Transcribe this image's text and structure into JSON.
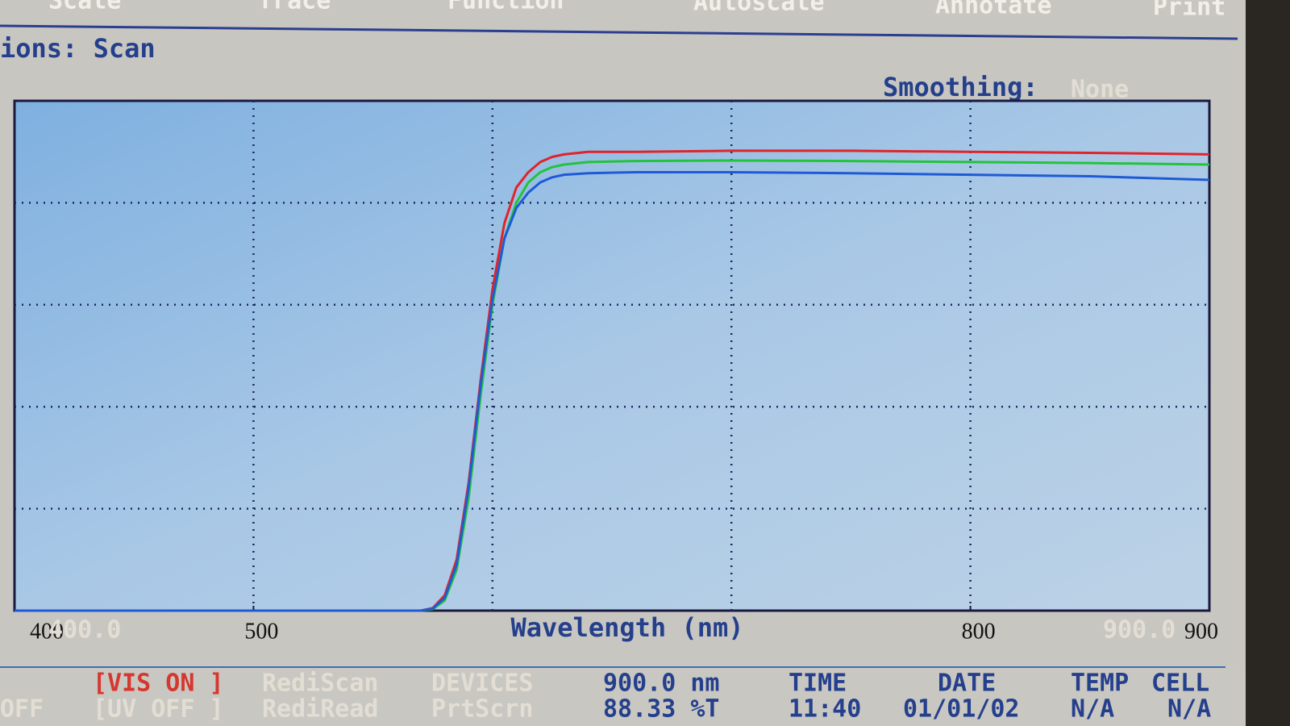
{
  "menu": [
    "Scale",
    "Trace",
    "Function",
    "Autoscale",
    "Annotate",
    "Print"
  ],
  "options": "ions: Scan",
  "smoothing": {
    "label": "Smoothing:",
    "value": "None"
  },
  "chart_data": {
    "type": "line",
    "x_label": "Wavelength (nm)",
    "x": [
      400,
      450,
      500,
      550,
      570,
      575,
      580,
      585,
      590,
      595,
      600,
      605,
      610,
      615,
      620,
      625,
      630,
      640,
      660,
      700,
      750,
      800,
      850,
      900
    ],
    "series": [
      {
        "color": "#e0242a",
        "values": [
          0,
          0,
          0,
          0,
          0,
          0.5,
          3,
          10,
          25,
          45,
          63,
          76,
          83,
          86,
          88,
          89,
          89.5,
          90,
          90,
          90.2,
          90.2,
          90,
          89.8,
          89.5
        ]
      },
      {
        "color": "#22c43a",
        "values": [
          0,
          0,
          0,
          0,
          0,
          0.3,
          2,
          8,
          22,
          42,
          60,
          73,
          80,
          84,
          86,
          87,
          87.5,
          88,
          88.2,
          88.3,
          88.2,
          88,
          87.8,
          87.5
        ]
      },
      {
        "color": "#1f5ad6",
        "values": [
          0,
          0,
          0,
          0,
          0,
          0.4,
          2.5,
          9,
          24,
          44,
          61,
          73,
          79,
          82,
          84,
          85,
          85.5,
          85.8,
          86,
          86,
          85.8,
          85.5,
          85.2,
          84.5
        ]
      }
    ],
    "xlim": [
      400,
      900
    ],
    "ylim": [
      0,
      100
    ],
    "xticks": [
      400,
      500,
      800,
      900
    ],
    "xgrid": [
      500,
      600,
      700,
      800
    ],
    "ygrid": [
      20,
      40,
      60,
      80
    ],
    "ghost_labels": [
      "400.0",
      "900.0"
    ]
  },
  "status": {
    "row1": {
      "vis": "[VIS ON ]",
      "rediscan": "RediScan",
      "devices": "DEVICES",
      "wavelength": "900.0 nm",
      "time": "TIME",
      "date": "DATE",
      "temp": "TEMP",
      "cell": "CELL"
    },
    "row2": {
      "off": "OFF",
      "uv": "[UV OFF ]",
      "rediread": "RediRead",
      "prtscrn": "PrtScrn",
      "reading": "88.33 %T",
      "time": "11:40",
      "date": "01/01/02",
      "temp": "N/A",
      "cell": "N/A"
    }
  }
}
